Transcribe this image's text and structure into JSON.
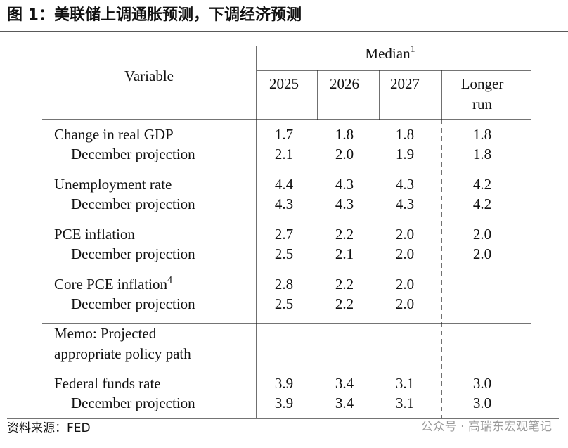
{
  "title": "图 1：美联储上调通胀预测，下调经济预测",
  "table": {
    "header": {
      "variable": "Variable",
      "median": "Median",
      "median_note": "1",
      "columns": [
        "2025",
        "2026",
        "2027",
        "Longer run"
      ]
    },
    "groups": [
      {
        "label": "Change in real GDP",
        "values": [
          "1.7",
          "1.8",
          "1.8",
          "1.8"
        ],
        "december": {
          "label": "December projection",
          "values": [
            "2.1",
            "2.0",
            "1.9",
            "1.8"
          ]
        }
      },
      {
        "label": "Unemployment rate",
        "values": [
          "4.4",
          "4.3",
          "4.3",
          "4.2"
        ],
        "december": {
          "label": "December projection",
          "values": [
            "4.3",
            "4.3",
            "4.3",
            "4.2"
          ]
        }
      },
      {
        "label": "PCE inflation",
        "values": [
          "2.7",
          "2.2",
          "2.0",
          "2.0"
        ],
        "december": {
          "label": "December projection",
          "values": [
            "2.5",
            "2.1",
            "2.0",
            "2.0"
          ]
        }
      },
      {
        "label": "Core PCE inflation",
        "note": "4",
        "values": [
          "2.8",
          "2.2",
          "2.0"
        ],
        "december": {
          "label": "December projection",
          "values": [
            "2.5",
            "2.2",
            "2.0"
          ]
        }
      },
      {
        "label": "Federal funds rate",
        "values": [
          "3.9",
          "3.4",
          "3.1",
          "3.0"
        ],
        "december": {
          "label": "December projection",
          "values": [
            "3.9",
            "3.4",
            "3.1",
            "3.0"
          ]
        }
      }
    ],
    "memo": [
      "Memo: Projected",
      "appropriate policy path"
    ]
  },
  "source": "资料来源：FED",
  "watermark": "公众号 · 高瑞东宏观笔记"
}
